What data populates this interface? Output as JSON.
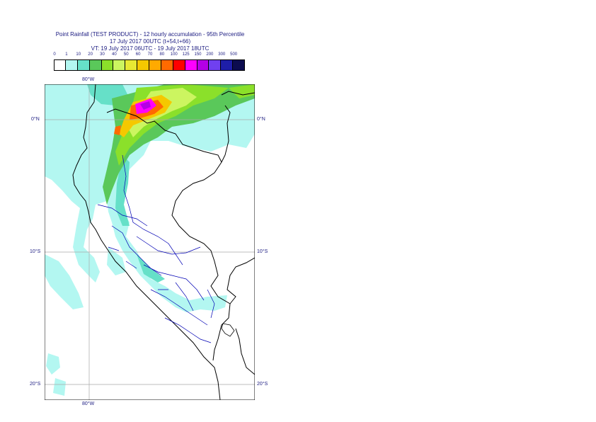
{
  "title": {
    "line1": "Point Rainfall (TEST PRODUCT) - 12 hourly accumulation - 95th Percentile",
    "line2": "17 July 2017 00UTC (t+54,t+66)",
    "line3": "VT: 19 July 2017 06UTC - 19 July 2017 18UTC"
  },
  "legend": {
    "ticks": [
      "0",
      "1",
      "10",
      "20",
      "30",
      "40",
      "50",
      "60",
      "70",
      "80",
      "100",
      "125",
      "150",
      "200",
      "300",
      "500"
    ],
    "colors": [
      "#ffffff",
      "#b3f7f1",
      "#66e0c8",
      "#5ac85a",
      "#8be02a",
      "#ccf560",
      "#e8e833",
      "#f5c800",
      "#ffaa00",
      "#ff6a00",
      "#ff0000",
      "#ff00ff",
      "#b400e6",
      "#7040f0",
      "#1e1ea8",
      "#0c0c50"
    ]
  },
  "axes": {
    "top_lon": "80°W",
    "bottom_lon": "80°W",
    "lat_left": [
      "0°N",
      "10°S",
      "20°S"
    ],
    "lat_right": [
      "0°N",
      "10°S",
      "20°S"
    ]
  }
}
